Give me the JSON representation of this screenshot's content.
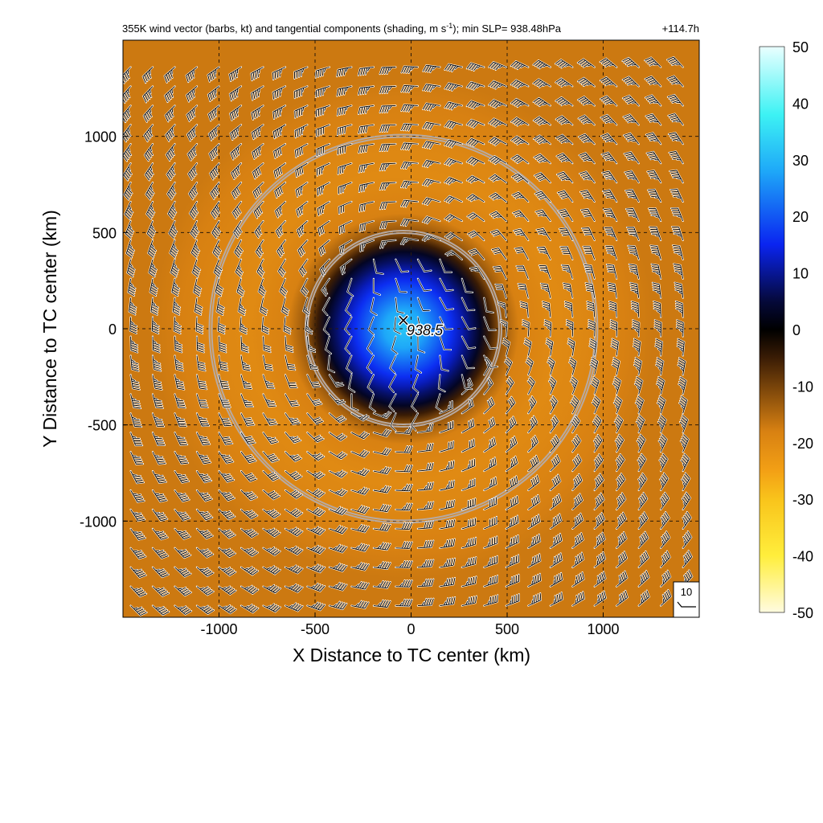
{
  "title": {
    "main": "355K wind vector (barbs, kt) and tangential components (shading, m s",
    "superscript": "-1",
    "rest": "); min SLP= 938.48hPa",
    "time": "+114.7h"
  },
  "chart_data": {
    "type": "heatmap",
    "xlabel": "X Distance to TC center (km)",
    "ylabel": "Y Distance to TC center (km)",
    "xlim": [
      -1500,
      1500
    ],
    "ylim": [
      -1500,
      1500
    ],
    "xticks": [
      -1000,
      -500,
      0,
      500,
      1000
    ],
    "yticks": [
      -1000,
      -500,
      0,
      500,
      1000
    ],
    "xtick_labels": [
      "-1000",
      "-500",
      "0",
      "500",
      "1000"
    ],
    "ytick_labels": [
      "-1000",
      "-500",
      "0",
      "500",
      "1000"
    ],
    "grid": true,
    "colorbar": {
      "min": -50,
      "max": 50,
      "ticks": [
        50,
        40,
        30,
        20,
        10,
        0,
        -10,
        -20,
        -30,
        -40,
        -50
      ],
      "tick_labels": [
        "50",
        "40",
        "30",
        "20",
        "10",
        "0",
        "-10",
        "-20",
        "-30",
        "-40",
        "-50"
      ],
      "colors": [
        "#fffbe0",
        "#ffee3c",
        "#f9c41b",
        "#f3a015",
        "#d88112",
        "#3a1c05",
        "#000000",
        "#05093a",
        "#0a24f0",
        "#1ea8f8",
        "#3df2f4",
        "#eaffff"
      ],
      "color_stops": [
        -50,
        -40,
        -30,
        -25,
        -18,
        -5,
        0,
        5,
        15,
        28,
        38,
        50
      ]
    },
    "tangential_wind_profile": {
      "radius_km": [
        0,
        100,
        200,
        300,
        400,
        450,
        500,
        600,
        800,
        1000,
        1300
      ],
      "value_ms": [
        32,
        28,
        20,
        12,
        3,
        -5,
        -12,
        -18,
        -20,
        -19,
        -17
      ]
    },
    "circles": [
      {
        "center_km": [
          -40,
          0
        ],
        "radius_km": 500,
        "color": "#b7aaa2"
      },
      {
        "center_km": [
          -40,
          0
        ],
        "radius_km": 1000,
        "color": "#b7aaa2"
      }
    ],
    "center_marker": {
      "x_km": -40,
      "y_km": 45,
      "symbol": "×"
    },
    "center_label": "938.5",
    "reference_barb": {
      "label": "10"
    },
    "barbs": {
      "units": "kt",
      "spacing_km": [
        115,
        100
      ],
      "inner_radius_km": 450,
      "inner_flow": "southerly",
      "outer_flow": "anticyclonic"
    }
  }
}
